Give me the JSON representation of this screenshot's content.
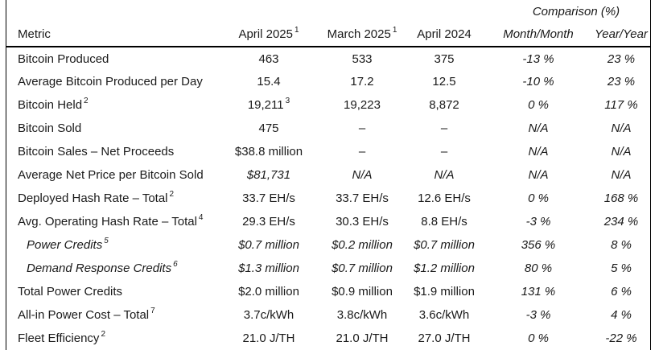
{
  "header": {
    "comparison_label": "Comparison (%)",
    "columns": {
      "metric": "Metric",
      "apr2025": "April 2025",
      "apr2025_sup": "1",
      "mar2025": "March 2025",
      "mar2025_sup": "1",
      "apr2024": "April 2024",
      "mom": "Month/Month",
      "yoy": "Year/Year"
    }
  },
  "rows": [
    {
      "metric": "Bitcoin Produced",
      "apr2025": "463",
      "mar2025": "533",
      "apr2024": "375",
      "mom": "-13 %",
      "yoy": "23 %"
    },
    {
      "metric": "Average Bitcoin Produced per Day",
      "apr2025": "15.4",
      "mar2025": "17.2",
      "apr2024": "12.5",
      "mom": "-10 %",
      "yoy": "23 %"
    },
    {
      "metric": "Bitcoin Held",
      "metric_sup": "2",
      "apr2025": "19,211",
      "apr2025_sup": "3",
      "mar2025": "19,223",
      "apr2024": "8,872",
      "mom": "0 %",
      "yoy": "117 %"
    },
    {
      "metric": "Bitcoin Sold",
      "apr2025": "475",
      "mar2025": "–",
      "apr2024": "–",
      "mom": "N/A",
      "yoy": "N/A"
    },
    {
      "metric": "Bitcoin Sales – Net Proceeds",
      "apr2025": "$38.8 million",
      "mar2025": "–",
      "apr2024": "–",
      "mom": "N/A",
      "yoy": "N/A"
    },
    {
      "metric": "Average Net Price per Bitcoin Sold",
      "apr2025": "$81,731",
      "mar2025": "N/A",
      "apr2024": "N/A",
      "mom": "N/A",
      "yoy": "N/A"
    },
    {
      "metric": "Deployed Hash Rate – Total",
      "metric_sup": "2",
      "apr2025": "33.7 EH/s",
      "mar2025": "33.7 EH/s",
      "apr2024": "12.6 EH/s",
      "mom": "0 %",
      "yoy": "168 %"
    },
    {
      "metric": "Avg. Operating Hash Rate – Total",
      "metric_sup": "4",
      "apr2025": "29.3 EH/s",
      "mar2025": "30.3 EH/s",
      "apr2024": "8.8 EH/s",
      "mom": "-3 %",
      "yoy": "234 %"
    },
    {
      "metric": "Power Credits",
      "metric_sup": "5",
      "apr2025": "$0.7 million",
      "mar2025": "$0.2 million",
      "apr2024": "$0.7 million",
      "mom": "356 %",
      "yoy": "8 %"
    },
    {
      "metric": "Demand Response Credits",
      "metric_sup": "6",
      "apr2025": "$1.3 million",
      "mar2025": "$0.7 million",
      "apr2024": "$1.2 million",
      "mom": "80 %",
      "yoy": "5 %"
    },
    {
      "metric": "Total Power Credits",
      "apr2025": "$2.0 million",
      "mar2025": "$0.9 million",
      "apr2024": "$1.9 million",
      "mom": "131 %",
      "yoy": "6 %"
    },
    {
      "metric": "All-in Power Cost – Total",
      "metric_sup": "7",
      "apr2025": "3.7c/kWh",
      "mar2025": "3.8c/kWh",
      "apr2024": "3.6c/kWh",
      "mom": "-3 %",
      "yoy": "4 %"
    },
    {
      "metric": "Fleet Efficiency",
      "metric_sup": "2",
      "apr2025": "21.0 J/TH",
      "mar2025": "21.0 J/TH",
      "apr2024": "27.0 J/TH",
      "mom": "0 %",
      "yoy": "-22 %"
    }
  ]
}
